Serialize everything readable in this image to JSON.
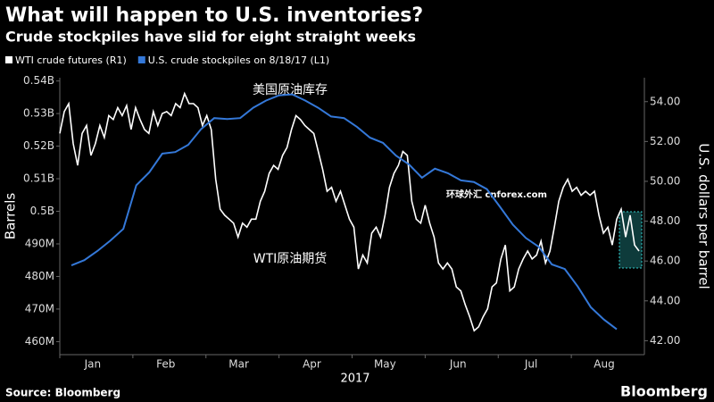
{
  "chart_data": {
    "type": "line",
    "title": "What will happen to U.S. inventories?",
    "subtitle": "Crude stockpiles have slid for eight straight weeks",
    "source": "Source: Bloomberg",
    "brand": "Bloomberg",
    "watermark": "环球外汇 cnforex.com",
    "y_label": "Barrels",
    "y2_label": "U.S. dollars per barrel",
    "x_title": "2017",
    "months": [
      "Jan",
      "Feb",
      "Mar",
      "Apr",
      "May",
      "Jun",
      "Jul",
      "Aug"
    ],
    "annotations": [
      "美国原油库存",
      "WTI原油期货"
    ],
    "ylim": [
      456000000,
      541000000
    ],
    "yticks": [
      {
        "value": 460000000,
        "label": "460M"
      },
      {
        "value": 470000000,
        "label": "470M"
      },
      {
        "value": 480000000,
        "label": "480M"
      },
      {
        "value": 490000000,
        "label": "490M"
      },
      {
        "value": 500000000,
        "label": "0.5B"
      },
      {
        "value": 510000000,
        "label": "0.51B"
      },
      {
        "value": 520000000,
        "label": "0.52B"
      },
      {
        "value": 530000000,
        "label": "0.53B"
      },
      {
        "value": 540000000,
        "label": "0.54B"
      }
    ],
    "y2lim": [
      41.3,
      55.2
    ],
    "y2ticks": [
      {
        "value": 42,
        "label": "42.00"
      },
      {
        "value": 44,
        "label": "44.00"
      },
      {
        "value": 46,
        "label": "46.00"
      },
      {
        "value": 48,
        "label": "48.00"
      },
      {
        "value": 50,
        "label": "50.00"
      },
      {
        "value": 52,
        "label": "52.00"
      },
      {
        "value": 54,
        "label": "54.00"
      }
    ],
    "series": [
      {
        "name": "WTI crude futures (R1)",
        "color": "#ffffff",
        "axis": "y2",
        "values": [
          52.4,
          53.5,
          53.9,
          51.9,
          50.8,
          52.4,
          52.8,
          51.3,
          51.9,
          52.8,
          52.2,
          53.3,
          53.1,
          53.7,
          53.3,
          53.8,
          52.6,
          53.7,
          53.1,
          52.6,
          52.4,
          53.5,
          52.8,
          53.4,
          53.5,
          53.3,
          53.9,
          53.7,
          54.4,
          53.9,
          53.9,
          53.7,
          52.8,
          53.3,
          52.6,
          50.1,
          48.6,
          48.3,
          48.1,
          47.9,
          47.2,
          47.9,
          47.7,
          48.1,
          48.1,
          49.0,
          49.5,
          50.4,
          50.8,
          50.6,
          51.3,
          51.7,
          52.6,
          53.3,
          53.1,
          52.8,
          52.6,
          52.4,
          51.5,
          50.6,
          49.5,
          49.7,
          49.0,
          49.5,
          48.8,
          48.1,
          47.7,
          45.6,
          46.3,
          45.9,
          47.4,
          47.7,
          47.2,
          48.3,
          49.7,
          50.4,
          50.8,
          51.5,
          51.3,
          49.0,
          48.1,
          47.9,
          48.8,
          47.9,
          47.2,
          45.9,
          45.6,
          45.9,
          45.6,
          44.7,
          44.5,
          43.8,
          43.2,
          42.5,
          42.7,
          43.2,
          43.6,
          44.7,
          44.9,
          46.1,
          46.8,
          44.5,
          44.7,
          45.6,
          46.1,
          46.5,
          46.1,
          46.3,
          47.0,
          45.9,
          46.5,
          47.7,
          49.0,
          49.7,
          50.1,
          49.5,
          49.7,
          49.3,
          49.5,
          49.3,
          49.5,
          48.3,
          47.4,
          47.7,
          46.8,
          48.1,
          48.6,
          47.2,
          48.3,
          46.8,
          46.5
        ]
      },
      {
        "name": "U.S. crude stockpiles  on 8/18/17 (L1)",
        "color": "#3478d8",
        "axis": "y",
        "values": [
          483400000,
          485000000,
          487800000,
          491000000,
          494600000,
          508000000,
          512000000,
          517700000,
          518200000,
          520400000,
          525300000,
          528600000,
          528300000,
          528600000,
          531800000,
          534000000,
          535600000,
          535900000,
          534000000,
          531800000,
          529100000,
          528600000,
          525900000,
          522600000,
          521000000,
          517100000,
          514400000,
          510300000,
          513100000,
          511700000,
          509500000,
          509000000,
          506800000,
          501400000,
          495900000,
          491800000,
          489100000,
          483700000,
          482300000,
          476900000,
          470600000,
          466800000,
          463800000
        ]
      }
    ]
  }
}
